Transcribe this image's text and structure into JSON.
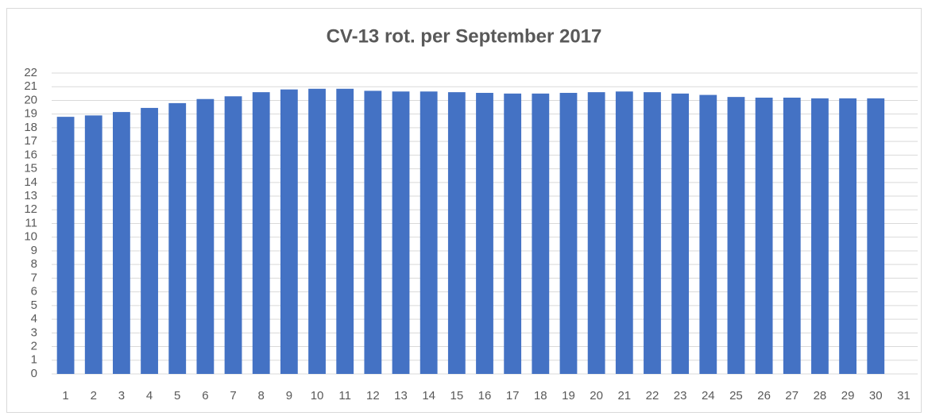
{
  "chart_data": {
    "type": "bar",
    "title": "CV-13 rot. per September 2017",
    "categories": [
      "1",
      "2",
      "3",
      "4",
      "5",
      "6",
      "7",
      "8",
      "9",
      "10",
      "11",
      "12",
      "13",
      "14",
      "15",
      "16",
      "17",
      "18",
      "19",
      "20",
      "21",
      "22",
      "23",
      "24",
      "25",
      "26",
      "27",
      "28",
      "29",
      "30",
      "31"
    ],
    "values": [
      18.8,
      18.9,
      19.15,
      19.45,
      19.8,
      20.1,
      20.3,
      20.6,
      20.8,
      20.85,
      20.85,
      20.7,
      20.65,
      20.65,
      20.6,
      20.55,
      20.5,
      20.5,
      20.55,
      20.6,
      20.65,
      20.6,
      20.5,
      20.4,
      20.25,
      20.2,
      20.2,
      20.15,
      20.15,
      20.15,
      null
    ],
    "color": "#4472c4",
    "ylim": [
      0,
      22
    ],
    "yticks": [
      0,
      1,
      2,
      3,
      4,
      5,
      6,
      7,
      8,
      9,
      10,
      11,
      12,
      13,
      14,
      15,
      16,
      17,
      18,
      19,
      20,
      21,
      22
    ],
    "grid": true
  }
}
